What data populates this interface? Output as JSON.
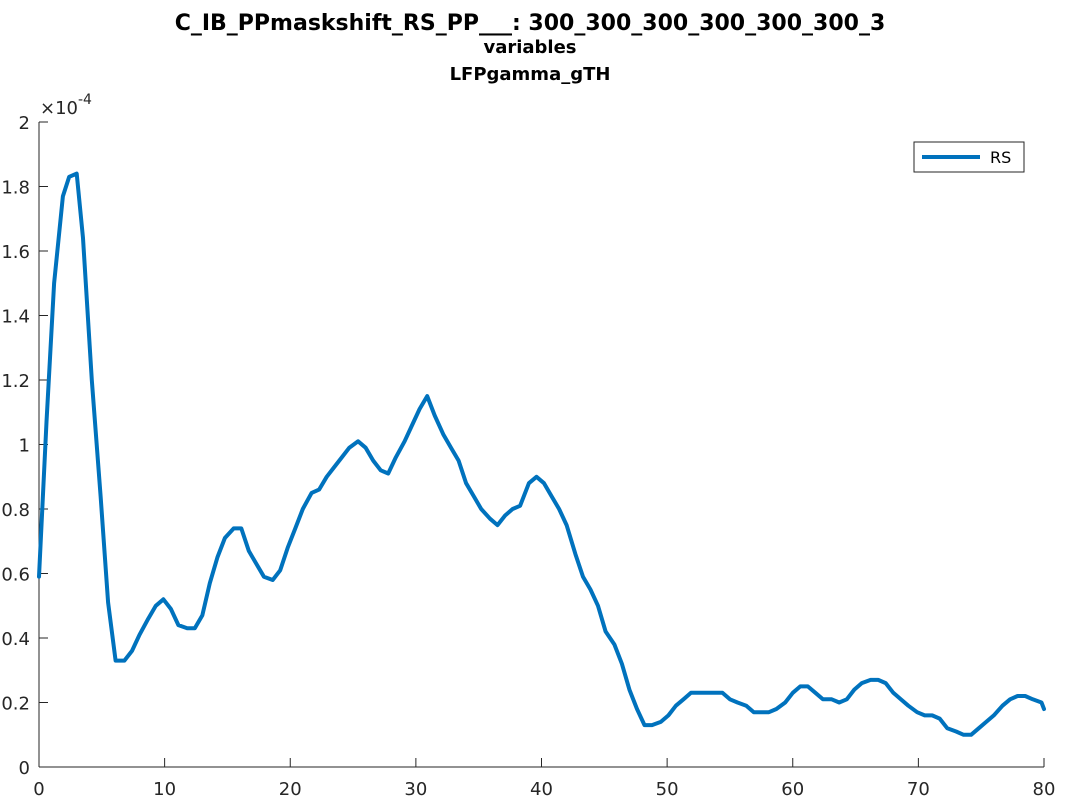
{
  "chart_data": {
    "type": "line",
    "title": [
      "C_IB_PPmaskshift_RS_PP___: 300_300_300_300_300_300_3",
      "variables",
      "LFPgamma_gTH"
    ],
    "xlim": [
      0,
      80
    ],
    "ylim": [
      0,
      2
    ],
    "y_exponent_label": "×10",
    "y_exponent_power": "-4",
    "xticks": [
      0,
      10,
      20,
      30,
      40,
      50,
      60,
      70,
      80
    ],
    "xtick_labels": [
      "0",
      "10",
      "20",
      "30",
      "40",
      "50",
      "60",
      "70",
      "80"
    ],
    "yticks": [
      0,
      0.2,
      0.4,
      0.6,
      0.8,
      1,
      1.2,
      1.4,
      1.6,
      1.8,
      2
    ],
    "ytick_labels": [
      "0",
      "0.2",
      "0.4",
      "0.6",
      "0.8",
      "1",
      "1.2",
      "1.4",
      "1.6",
      "1.8",
      "2"
    ],
    "legend": {
      "location": "top-right",
      "entries": [
        "RS"
      ]
    },
    "series": [
      {
        "name": "RS",
        "color": "#0072BD",
        "x": [
          0,
          0.6,
          1.2,
          1.9,
          2.4,
          3.0,
          3.5,
          4.2,
          4.9,
          5.5,
          6.1,
          6.8,
          7.4,
          8.0,
          8.7,
          9.3,
          9.9,
          10.5,
          11.1,
          11.8,
          12.4,
          13.0,
          13.6,
          14.2,
          14.8,
          15.5,
          16.1,
          16.7,
          17.3,
          17.9,
          18.6,
          19.2,
          19.8,
          20.4,
          21.0,
          21.7,
          22.3,
          22.9,
          23.5,
          24.1,
          24.7,
          25.4,
          26.0,
          26.6,
          27.2,
          27.8,
          28.4,
          29.1,
          29.7,
          30.3,
          30.9,
          31.5,
          32.2,
          32.8,
          33.4,
          34.0,
          34.6,
          35.2,
          35.9,
          36.5,
          37.1,
          37.7,
          38.3,
          39.0,
          39.6,
          40.2,
          40.8,
          41.4,
          42.0,
          42.7,
          43.3,
          43.9,
          44.5,
          45.1,
          45.8,
          46.4,
          47.0,
          47.6,
          48.2,
          48.8,
          49.5,
          50.1,
          50.7,
          51.3,
          51.9,
          52.6,
          53.2,
          53.8,
          54.4,
          55.0,
          55.6,
          56.3,
          56.9,
          57.5,
          58.1,
          58.7,
          59.4,
          60.0,
          60.6,
          61.2,
          61.8,
          62.4,
          63.1,
          63.7,
          64.3,
          64.9,
          65.5,
          66.2,
          66.8,
          67.4,
          68.0,
          68.6,
          69.2,
          69.9,
          70.5,
          71.1,
          71.7,
          72.3,
          73.0,
          73.6,
          74.2,
          74.8,
          75.4,
          76.0,
          76.7,
          77.3,
          77.9,
          78.5,
          79.1,
          79.8,
          80.0
        ],
        "values": [
          0.59,
          1.07,
          1.5,
          1.77,
          1.83,
          1.84,
          1.64,
          1.2,
          0.84,
          0.51,
          0.33,
          0.33,
          0.36,
          0.41,
          0.46,
          0.5,
          0.52,
          0.49,
          0.44,
          0.43,
          0.43,
          0.47,
          0.57,
          0.65,
          0.71,
          0.74,
          0.74,
          0.67,
          0.63,
          0.59,
          0.58,
          0.61,
          0.68,
          0.74,
          0.8,
          0.85,
          0.86,
          0.9,
          0.93,
          0.96,
          0.99,
          1.01,
          0.99,
          0.95,
          0.92,
          0.91,
          0.96,
          1.01,
          1.06,
          1.11,
          1.15,
          1.09,
          1.03,
          0.99,
          0.95,
          0.88,
          0.84,
          0.8,
          0.77,
          0.75,
          0.78,
          0.8,
          0.81,
          0.88,
          0.9,
          0.88,
          0.84,
          0.8,
          0.75,
          0.66,
          0.59,
          0.55,
          0.5,
          0.42,
          0.38,
          0.32,
          0.24,
          0.18,
          0.13,
          0.13,
          0.14,
          0.16,
          0.19,
          0.21,
          0.23,
          0.23,
          0.23,
          0.23,
          0.23,
          0.21,
          0.2,
          0.19,
          0.17,
          0.17,
          0.17,
          0.18,
          0.2,
          0.23,
          0.25,
          0.25,
          0.23,
          0.21,
          0.21,
          0.2,
          0.21,
          0.24,
          0.26,
          0.27,
          0.27,
          0.26,
          0.23,
          0.21,
          0.19,
          0.17,
          0.16,
          0.16,
          0.15,
          0.12,
          0.11,
          0.1,
          0.1,
          0.12,
          0.14,
          0.16,
          0.19,
          0.21,
          0.22,
          0.22,
          0.21,
          0.2,
          0.18
        ]
      }
    ]
  }
}
